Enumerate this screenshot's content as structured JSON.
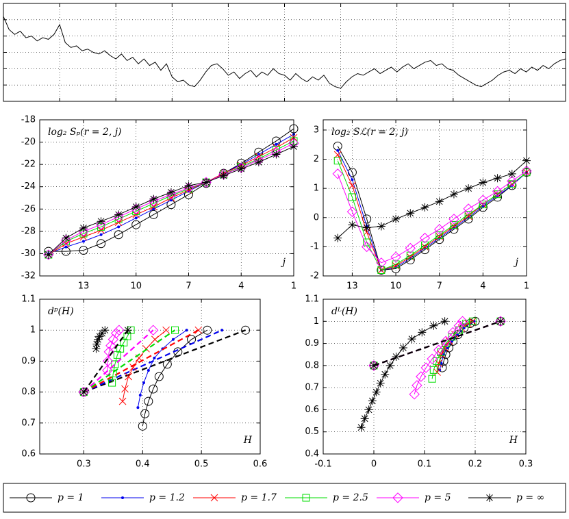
{
  "chart_data": [
    {
      "type": "line",
      "tick_labels": false,
      "grid": true,
      "color": "#000000",
      "xlim": [
        0,
        100
      ],
      "ylim": [
        0,
        6
      ],
      "xticks": [
        10,
        20,
        30,
        40,
        50,
        60,
        70,
        80,
        90
      ],
      "yticks": [
        1,
        2,
        3,
        4,
        5
      ],
      "values": [
        5.2,
        4.4,
        4.1,
        4.3,
        3.9,
        4.0,
        3.7,
        3.9,
        3.8,
        4.1,
        4.7,
        3.6,
        3.3,
        3.4,
        3.1,
        3.2,
        3.0,
        2.9,
        3.1,
        2.8,
        2.6,
        2.9,
        2.5,
        2.7,
        2.3,
        2.6,
        2.2,
        2.4,
        1.9,
        2.3,
        1.5,
        1.2,
        1.3,
        1.0,
        0.9,
        1.3,
        1.8,
        2.2,
        2.3,
        2.0,
        1.6,
        1.8,
        1.4,
        1.7,
        1.9,
        1.5,
        1.8,
        1.6,
        2.0,
        1.7,
        1.6,
        1.3,
        1.7,
        1.4,
        1.2,
        1.5,
        1.3,
        1.6,
        1.1,
        0.9,
        0.8,
        1.2,
        1.5,
        1.7,
        1.6,
        1.8,
        2.0,
        1.7,
        1.9,
        2.1,
        1.8,
        2.1,
        2.3,
        2.0,
        2.2,
        2.4,
        2.5,
        2.2,
        2.3,
        2.0,
        1.9,
        1.6,
        1.4,
        1.2,
        1.0,
        0.9,
        1.1,
        1.3,
        1.6,
        1.8,
        1.9,
        1.7,
        2.0,
        1.8,
        2.1,
        1.9,
        2.2,
        2.0,
        2.3,
        2.5,
        2.6
      ]
    },
    {
      "type": "line",
      "tick_labels": true,
      "grid": true,
      "annotation": "log₂ Sₚ(r = 2, j)",
      "xlabel": "j",
      "xlim": [
        15.5,
        1
      ],
      "ylim": [
        -32,
        -18
      ],
      "xticks": [
        13,
        10,
        7,
        4,
        1
      ],
      "yticks": [
        -32,
        -30,
        -28,
        -26,
        -24,
        -22,
        -20,
        -18
      ],
      "x": [
        15,
        14,
        13,
        12,
        11,
        10,
        9,
        8,
        7,
        6,
        5,
        4,
        3,
        2,
        1
      ],
      "series": [
        {
          "name": "p = 1",
          "color": "#000000",
          "marker": "circle",
          "values": [
            -29.8,
            -29.8,
            -29.7,
            -29.1,
            -28.3,
            -27.4,
            -26.5,
            -25.6,
            -24.7,
            -23.7,
            -22.8,
            -21.9,
            -20.9,
            -19.9,
            -18.8
          ]
        },
        {
          "name": "p = 1.2",
          "color": "#0000ee",
          "marker": "dot",
          "values": [
            -30.0,
            -29.4,
            -28.9,
            -28.3,
            -27.6,
            -26.8,
            -26.0,
            -25.2,
            -24.4,
            -23.6,
            -22.8,
            -22.0,
            -21.1,
            -20.2,
            -19.3
          ]
        },
        {
          "name": "p = 1.7",
          "color": "#ff0000",
          "marker": "x",
          "values": [
            -30.1,
            -29.1,
            -28.5,
            -27.9,
            -27.2,
            -26.5,
            -25.8,
            -25.0,
            -24.3,
            -23.6,
            -22.8,
            -22.1,
            -21.3,
            -20.5,
            -19.6
          ]
        },
        {
          "name": "p = 2.5",
          "color": "#00dd00",
          "marker": "square",
          "values": [
            -30.1,
            -28.9,
            -28.2,
            -27.6,
            -26.9,
            -26.2,
            -25.5,
            -24.8,
            -24.2,
            -23.6,
            -22.9,
            -22.2,
            -21.5,
            -20.7,
            -19.9
          ]
        },
        {
          "name": "p = 5",
          "color": "#ff00ff",
          "marker": "diamond",
          "values": [
            -30.1,
            -28.8,
            -28.0,
            -27.4,
            -26.7,
            -26.0,
            -25.3,
            -24.7,
            -24.1,
            -23.6,
            -22.9,
            -22.3,
            -21.6,
            -20.9,
            -20.1
          ]
        },
        {
          "name": "p = ∞",
          "color": "#000000",
          "marker": "star",
          "values": [
            -30.1,
            -28.6,
            -27.7,
            -27.1,
            -26.5,
            -25.8,
            -25.1,
            -24.5,
            -23.9,
            -23.6,
            -23.0,
            -22.4,
            -21.8,
            -21.1,
            -20.4
          ]
        }
      ]
    },
    {
      "type": "line",
      "tick_labels": true,
      "grid": true,
      "annotation": "log₂ Sℒ(r = 2, j)",
      "xlabel": "j",
      "xlim": [
        15,
        1
      ],
      "ylim": [
        -2,
        3.35
      ],
      "xticks": [
        13,
        10,
        7,
        4,
        1
      ],
      "yticks": [
        -2,
        -1,
        0,
        1,
        2,
        3
      ],
      "x": [
        14,
        13,
        12,
        11,
        10,
        9,
        8,
        7,
        6,
        5,
        4,
        3,
        2,
        1
      ],
      "series": [
        {
          "color": "#000000",
          "marker": "circle",
          "values": [
            2.45,
            1.55,
            -0.05,
            -1.8,
            -1.75,
            -1.45,
            -1.1,
            -0.75,
            -0.4,
            -0.05,
            0.35,
            0.7,
            1.1,
            1.55
          ]
        },
        {
          "color": "#0000ee",
          "marker": "dot",
          "values": [
            2.3,
            1.3,
            -0.3,
            -1.8,
            -1.7,
            -1.4,
            -1.05,
            -0.7,
            -0.35,
            0.0,
            0.4,
            0.75,
            1.1,
            1.55
          ]
        },
        {
          "color": "#ff0000",
          "marker": "x",
          "values": [
            2.15,
            1.1,
            -0.5,
            -1.8,
            -1.65,
            -1.35,
            -1.0,
            -0.65,
            -0.3,
            0.05,
            0.45,
            0.8,
            1.15,
            1.55
          ]
        },
        {
          "color": "#00dd00",
          "marker": "square",
          "values": [
            1.95,
            0.7,
            -0.85,
            -1.8,
            -1.6,
            -1.3,
            -0.95,
            -0.6,
            -0.25,
            0.1,
            0.45,
            0.8,
            1.15,
            1.55
          ]
        },
        {
          "color": "#ff00ff",
          "marker": "diamond",
          "values": [
            1.5,
            0.2,
            -1.0,
            -1.55,
            -1.35,
            -1.05,
            -0.7,
            -0.4,
            -0.05,
            0.3,
            0.6,
            0.9,
            1.25,
            1.6
          ]
        },
        {
          "color": "#000000",
          "marker": "star",
          "values": [
            -0.7,
            -0.25,
            -0.35,
            -0.3,
            -0.05,
            0.15,
            0.35,
            0.55,
            0.8,
            1.0,
            1.2,
            1.35,
            1.5,
            1.95
          ]
        }
      ]
    },
    {
      "type": "line",
      "tick_labels": true,
      "grid": true,
      "annotation": "dᵖ(H)",
      "xlabel": "H",
      "xlim": [
        0.225,
        0.6
      ],
      "ylim": [
        0.6,
        1.1
      ],
      "xticks": [
        0.3,
        0.4,
        0.5,
        0.6
      ],
      "yticks": [
        0.6,
        0.7,
        0.8,
        0.9,
        1,
        1.1
      ],
      "series": [
        {
          "color": "#000000",
          "marker": "circle",
          "x": [
            0.4,
            0.404,
            0.41,
            0.418,
            0.428,
            0.442,
            0.46,
            0.483,
            0.51
          ],
          "values": [
            0.69,
            0.73,
            0.77,
            0.81,
            0.85,
            0.89,
            0.93,
            0.97,
            1.0
          ],
          "dashed_x": [
            0.3,
            0.575
          ],
          "dashed_values": [
            0.8,
            1.0
          ]
        },
        {
          "color": "#0000ee",
          "marker": "dot",
          "x": [
            0.392,
            0.396,
            0.402,
            0.41,
            0.42,
            0.434,
            0.452,
            0.475
          ],
          "values": [
            0.75,
            0.79,
            0.83,
            0.87,
            0.91,
            0.94,
            0.97,
            1.0
          ],
          "dashed_x": [
            0.3,
            0.535
          ],
          "dashed_values": [
            0.8,
            1.0
          ]
        },
        {
          "color": "#ff0000",
          "marker": "x",
          "x": [
            0.366,
            0.37,
            0.376,
            0.384,
            0.394,
            0.406,
            0.421,
            0.44
          ],
          "values": [
            0.77,
            0.81,
            0.85,
            0.88,
            0.91,
            0.94,
            0.97,
            1.0
          ],
          "dashed_x": [
            0.3,
            0.495
          ],
          "dashed_values": [
            0.8,
            1.0
          ]
        },
        {
          "color": "#00dd00",
          "marker": "square",
          "x": [
            0.348,
            0.35,
            0.353,
            0.357,
            0.362,
            0.368,
            0.374,
            0.38
          ],
          "values": [
            0.83,
            0.86,
            0.89,
            0.92,
            0.94,
            0.96,
            0.98,
            1.0
          ],
          "dashed_x": [
            0.3,
            0.455
          ],
          "dashed_values": [
            0.8,
            1.0
          ]
        },
        {
          "color": "#ff00ff",
          "marker": "diamond",
          "x": [
            0.34,
            0.341,
            0.343,
            0.346,
            0.35,
            0.355,
            0.36
          ],
          "values": [
            0.87,
            0.9,
            0.93,
            0.95,
            0.97,
            0.99,
            1.0
          ],
          "dashed_x": [
            0.3,
            0.418
          ],
          "dashed_values": [
            0.8,
            1.0
          ]
        },
        {
          "color": "#000000",
          "marker": "star",
          "x": [
            0.321,
            0.322,
            0.324,
            0.327,
            0.331,
            0.336
          ],
          "values": [
            0.94,
            0.955,
            0.97,
            0.98,
            0.99,
            1.0
          ],
          "dashed_x": [
            0.3,
            0.375
          ],
          "dashed_values": [
            0.8,
            1.0
          ]
        }
      ]
    },
    {
      "type": "line",
      "tick_labels": true,
      "grid": true,
      "annotation": "dᴸ(H)",
      "xlabel": "H",
      "xlim": [
        -0.1,
        0.3
      ],
      "ylim": [
        0.4,
        1.1
      ],
      "xticks": [
        -0.1,
        0,
        0.1,
        0.2,
        0.3
      ],
      "yticks": [
        0.4,
        0.5,
        0.6,
        0.7,
        0.8,
        0.9,
        1,
        1.1
      ],
      "series": [
        {
          "color": "#000000",
          "marker": "circle",
          "x": [
            0.135,
            0.138,
            0.142,
            0.148,
            0.156,
            0.166,
            0.178,
            0.19,
            0.2
          ],
          "values": [
            0.79,
            0.82,
            0.85,
            0.88,
            0.91,
            0.94,
            0.97,
            0.99,
            1.0
          ],
          "dashed_x": [
            0,
            0.25
          ],
          "dashed_values": [
            0.8,
            1.0
          ]
        },
        {
          "color": "#0000ee",
          "marker": "dot",
          "x": [
            0.13,
            0.133,
            0.138,
            0.145,
            0.154,
            0.165,
            0.178,
            0.19,
            0.198
          ],
          "values": [
            0.78,
            0.81,
            0.85,
            0.88,
            0.91,
            0.94,
            0.97,
            0.99,
            1.0
          ],
          "dashed_x": [
            0,
            0.25
          ],
          "dashed_values": [
            0.8,
            1.0
          ]
        },
        {
          "color": "#ff0000",
          "marker": "x",
          "x": [
            0.125,
            0.128,
            0.133,
            0.14,
            0.149,
            0.16,
            0.173,
            0.186,
            0.195
          ],
          "values": [
            0.77,
            0.81,
            0.85,
            0.88,
            0.91,
            0.94,
            0.97,
            0.99,
            1.0
          ],
          "dashed_x": [
            0,
            0.25
          ],
          "dashed_values": [
            0.8,
            1.0
          ]
        },
        {
          "color": "#00dd00",
          "marker": "square",
          "x": [
            0.115,
            0.118,
            0.124,
            0.132,
            0.142,
            0.154,
            0.168,
            0.182,
            0.195
          ],
          "values": [
            0.74,
            0.78,
            0.82,
            0.86,
            0.9,
            0.93,
            0.96,
            0.99,
            1.0
          ],
          "dashed_x": [
            0,
            0.25
          ],
          "dashed_values": [
            0.8,
            1.0
          ]
        },
        {
          "color": "#ff00ff",
          "marker": "diamond",
          "x": [
            0.08,
            0.085,
            0.093,
            0.103,
            0.115,
            0.128,
            0.142,
            0.156,
            0.168,
            0.175
          ],
          "values": [
            0.67,
            0.71,
            0.75,
            0.79,
            0.83,
            0.87,
            0.91,
            0.95,
            0.98,
            1.0
          ],
          "dashed_x": [
            0,
            0.25
          ],
          "dashed_values": [
            0.8,
            1.0
          ]
        },
        {
          "color": "#000000",
          "marker": "star",
          "x": [
            -0.025,
            -0.018,
            -0.01,
            -0.003,
            0.005,
            0.013,
            0.022,
            0.032,
            0.044,
            0.058,
            0.075,
            0.095,
            0.118,
            0.14
          ],
          "values": [
            0.52,
            0.56,
            0.6,
            0.64,
            0.68,
            0.72,
            0.76,
            0.8,
            0.84,
            0.88,
            0.92,
            0.95,
            0.98,
            1.0
          ],
          "dashed_x": [
            0,
            0.25
          ],
          "dashed_values": [
            0.8,
            1.0
          ]
        }
      ]
    }
  ]
}
